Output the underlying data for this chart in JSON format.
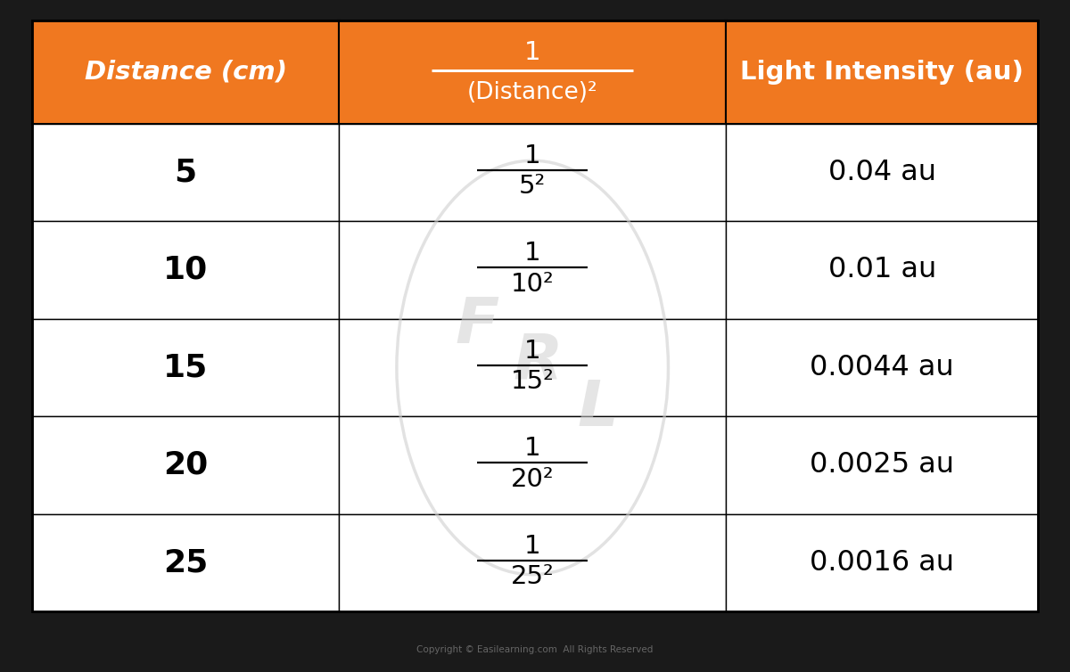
{
  "col1_header": "Distance (cm)",
  "col2_header_num": "1",
  "col2_header_den": "(Distance)²",
  "col3_header": "Light Intensity (au)",
  "distances": [
    "5",
    "10",
    "15",
    "20",
    "25"
  ],
  "fractions_den": [
    "5²",
    "10²",
    "15²",
    "20²",
    "25²"
  ],
  "intensities": [
    "0.04 au",
    "0.01 au",
    "0.0044 au",
    "0.0025 au",
    "0.0016 au"
  ],
  "header_bg": "#F07820",
  "header_text": "#FFFFFF",
  "row_bg": "#FFFFFF",
  "row_text": "#000000",
  "border_color": "#000000",
  "fig_bg": "#FFFFFF",
  "outer_bg": "#1a1a1a",
  "footer_text": "Copyright © Easilearning.com  All Rights Reserved",
  "footer_text_color": "#666666",
  "watermark_color": "#D0D0D0",
  "fig_width": 12.0,
  "fig_height": 7.54
}
